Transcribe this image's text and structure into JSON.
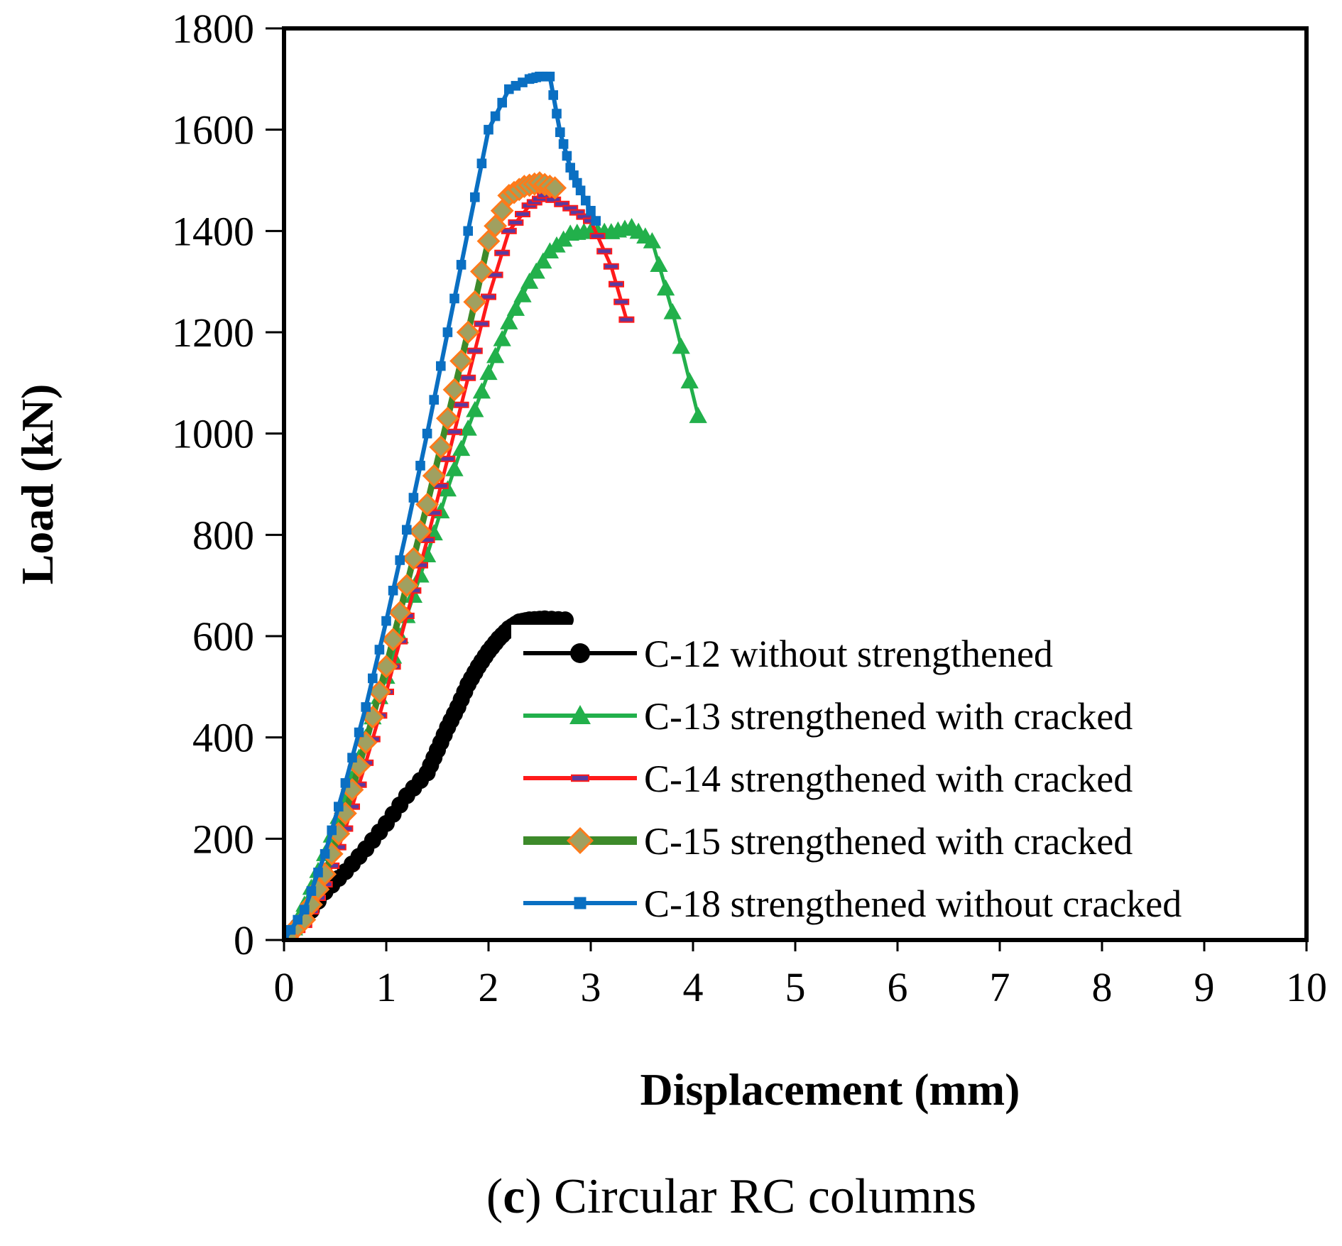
{
  "chart_data": {
    "type": "line",
    "title": "",
    "xlabel": "Displacement (mm)",
    "ylabel": "Load (kN)",
    "xlim": [
      0,
      10
    ],
    "ylim": [
      0,
      1800
    ],
    "xticks": [
      "0",
      "1",
      "2",
      "3",
      "4",
      "5",
      "6",
      "7",
      "8",
      "9",
      "10"
    ],
    "yticks": [
      "0",
      "200",
      "400",
      "600",
      "800",
      "1000",
      "1200",
      "1400",
      "1600",
      "1800"
    ],
    "grid": false,
    "legend_position": "bottom-right",
    "caption": {
      "prefix": "(",
      "letter": "c",
      "rest": ") Circular RC columns"
    },
    "series": [
      {
        "name": "C-12 without strengthened",
        "color": "#000000",
        "marker": "circle",
        "x": [
          0,
          0.2,
          0.4,
          0.6,
          0.8,
          1.0,
          1.2,
          1.4,
          1.5,
          1.6,
          1.7,
          1.8,
          1.9,
          2.0,
          2.1,
          2.2,
          2.3,
          2.4,
          2.55,
          2.75
        ],
        "y": [
          0,
          40,
          95,
          135,
          180,
          230,
          285,
          330,
          375,
          420,
          460,
          505,
          540,
          570,
          595,
          615,
          628,
          632,
          634,
          632
        ]
      },
      {
        "name": "C-13 strengthened with cracked",
        "color": "#22b04b",
        "marker": "triangle",
        "x": [
          0.05,
          0.2,
          0.4,
          0.6,
          0.8,
          1.0,
          1.2,
          1.4,
          1.6,
          1.8,
          2.0,
          2.2,
          2.4,
          2.6,
          2.8,
          3.0,
          3.2,
          3.4,
          3.6,
          3.8,
          4.05
        ],
        "y": [
          0,
          70,
          170,
          280,
          400,
          520,
          640,
          760,
          890,
          1010,
          1120,
          1220,
          1300,
          1360,
          1395,
          1400,
          1398,
          1408,
          1380,
          1240,
          1035
        ]
      },
      {
        "name": "C-14 strengthened with cracked",
        "color": "#ff1a1a",
        "marker": "dash",
        "x": [
          0,
          0.2,
          0.4,
          0.6,
          0.8,
          1.0,
          1.2,
          1.4,
          1.6,
          1.8,
          2.0,
          2.2,
          2.4,
          2.55,
          2.8,
          3.0,
          3.2,
          3.35
        ],
        "y": [
          0,
          30,
          110,
          220,
          350,
          490,
          640,
          790,
          950,
          1110,
          1270,
          1400,
          1450,
          1470,
          1445,
          1420,
          1330,
          1225
        ]
      },
      {
        "name": "C-15 strengthened with cracked",
        "color": "#3d8a2a",
        "marker": "diamond",
        "x": [
          0,
          0.2,
          0.4,
          0.6,
          0.8,
          1.0,
          1.2,
          1.4,
          1.6,
          1.8,
          2.0,
          2.2,
          2.35,
          2.5,
          2.65
        ],
        "y": [
          0,
          40,
          130,
          250,
          390,
          540,
          700,
          860,
          1030,
          1200,
          1380,
          1470,
          1488,
          1495,
          1485
        ]
      },
      {
        "name": "C-18 strengthened without cracked",
        "color": "#0a6fc2",
        "marker": "square",
        "x": [
          0,
          0.2,
          0.4,
          0.6,
          0.8,
          1.0,
          1.2,
          1.4,
          1.6,
          1.8,
          2.0,
          2.2,
          2.4,
          2.5,
          2.6,
          2.7,
          2.8,
          2.9,
          3.05
        ],
        "y": [
          0,
          60,
          170,
          310,
          460,
          630,
          810,
          1000,
          1200,
          1400,
          1600,
          1680,
          1700,
          1705,
          1705,
          1595,
          1525,
          1480,
          1420
        ]
      }
    ]
  }
}
